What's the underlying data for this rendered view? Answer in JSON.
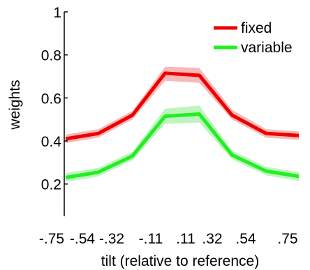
{
  "chart_data": {
    "type": "line",
    "title": "",
    "xlabel": "tilt (relative to reference)",
    "ylabel": "weights",
    "x": [
      -0.75,
      -0.54,
      -0.32,
      -0.11,
      0.11,
      0.32,
      0.54,
      0.75
    ],
    "x_tick_labels": [
      "-.75",
      "-.54",
      "-.32",
      "-.11",
      ".11",
      ".32",
      ".54",
      ".75"
    ],
    "y_ticks": [
      0.2,
      0.4,
      0.6,
      0.8,
      1
    ],
    "y_tick_labels": [
      "0.2",
      "0.4",
      "0.6",
      "0.8",
      "1"
    ],
    "ylim": [
      0.05,
      1.0
    ],
    "grid": false,
    "legend_position": "top-right",
    "series": [
      {
        "name": "fixed",
        "color": "#ee0000",
        "band_color": "#f4a3a3",
        "values": [
          0.41,
          0.435,
          0.52,
          0.715,
          0.705,
          0.52,
          0.435,
          0.425
        ],
        "lower": [
          0.39,
          0.415,
          0.5,
          0.68,
          0.67,
          0.5,
          0.415,
          0.405
        ],
        "upper": [
          0.43,
          0.455,
          0.54,
          0.745,
          0.74,
          0.545,
          0.455,
          0.445
        ]
      },
      {
        "name": "variable",
        "color": "#22ee22",
        "band_color": "#a8f0a8",
        "values": [
          0.23,
          0.255,
          0.33,
          0.515,
          0.525,
          0.335,
          0.26,
          0.235
        ],
        "lower": [
          0.21,
          0.235,
          0.31,
          0.48,
          0.485,
          0.315,
          0.24,
          0.215
        ],
        "upper": [
          0.25,
          0.275,
          0.35,
          0.55,
          0.565,
          0.355,
          0.28,
          0.255
        ]
      }
    ]
  }
}
